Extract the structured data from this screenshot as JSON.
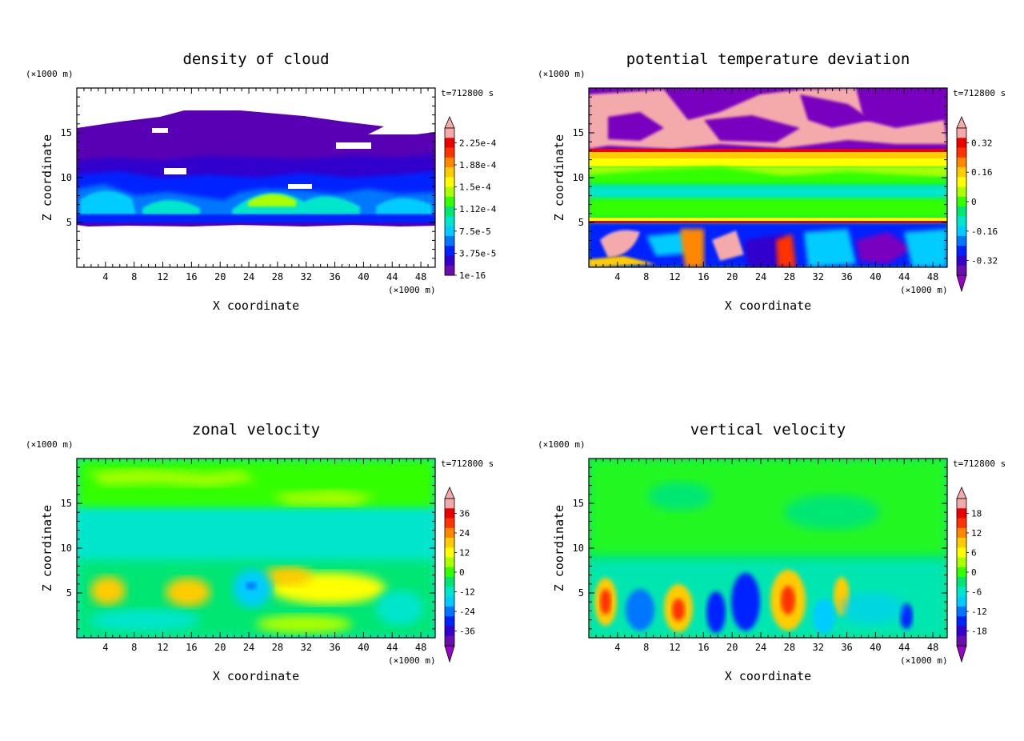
{
  "charts": [
    {
      "title": "density of cloud",
      "time_label": "t=712800 s",
      "colorbar_labels": [
        "2.25e-4",
        "1.88e-4",
        "1.5e-4",
        "1.12e-4",
        "7.5e-5",
        "3.75e-5",
        "1e-16"
      ]
    },
    {
      "title": "potential temperature deviation",
      "time_label": "t=712800 s",
      "colorbar_labels": [
        "0.32",
        "0.16",
        "0",
        "-0.16",
        "-0.32"
      ]
    },
    {
      "title": "zonal velocity",
      "time_label": "t=712800 s",
      "colorbar_labels": [
        "36",
        "24",
        "12",
        "0",
        "-12",
        "-24",
        "-36"
      ]
    },
    {
      "title": "vertical velocity",
      "time_label": "t=712800 s",
      "colorbar_labels": [
        "18",
        "12",
        "6",
        "0",
        "-6",
        "-12",
        "-18"
      ]
    }
  ],
  "axes": {
    "xlabel": "X coordinate",
    "ylabel": "Z coordinate",
    "xunit": "(×1000 m)",
    "yunit": "(×1000 m)",
    "xticks": [
      "4",
      "8",
      "12",
      "16",
      "20",
      "24",
      "28",
      "32",
      "36",
      "40",
      "44",
      "48"
    ],
    "yticks": [
      "5",
      "10",
      "15"
    ]
  },
  "chart_data": [
    {
      "type": "heatmap",
      "title": "density of cloud",
      "xlabel": "X coordinate",
      "ylabel": "Z coordinate",
      "xlim": [
        0,
        50
      ],
      "ylim": [
        0,
        20
      ],
      "xticks": [
        4,
        8,
        12,
        16,
        20,
        24,
        28,
        32,
        36,
        40,
        44,
        48
      ],
      "yticks": [
        5,
        10,
        15
      ],
      "colorbar": [
        0.000225,
        0.000188,
        0.00015,
        0.000112,
        7.5e-05,
        3.75e-05,
        1e-16
      ],
      "cloud_layer": {
        "z_bottom": 5,
        "z_top": 17
      }
    },
    {
      "type": "heatmap",
      "title": "potential temperature deviation",
      "xlabel": "X coordinate",
      "ylabel": "Z coordinate",
      "xlim": [
        0,
        50
      ],
      "ylim": [
        0,
        20
      ],
      "xticks": [
        4,
        8,
        12,
        16,
        20,
        24,
        28,
        32,
        36,
        40,
        44,
        48
      ],
      "yticks": [
        5,
        10,
        15
      ],
      "colorbar": [
        0.32,
        0.16,
        0,
        -0.16,
        -0.32
      ]
    },
    {
      "type": "heatmap",
      "title": "zonal velocity",
      "xlabel": "X coordinate",
      "ylabel": "Z coordinate",
      "xlim": [
        0,
        50
      ],
      "ylim": [
        0,
        20
      ],
      "xticks": [
        4,
        8,
        12,
        16,
        20,
        24,
        28,
        32,
        36,
        40,
        44,
        48
      ],
      "yticks": [
        5,
        10,
        15
      ],
      "colorbar": [
        36,
        24,
        12,
        0,
        -12,
        -24,
        -36
      ]
    },
    {
      "type": "heatmap",
      "title": "vertical velocity",
      "xlabel": "X coordinate",
      "ylabel": "Z coordinate",
      "xlim": [
        0,
        50
      ],
      "ylim": [
        0,
        20
      ],
      "xticks": [
        4,
        8,
        12,
        16,
        20,
        24,
        28,
        32,
        36,
        40,
        44,
        48
      ],
      "yticks": [
        5,
        10,
        15
      ],
      "colorbar": [
        18,
        12,
        6,
        0,
        -6,
        -12,
        -18
      ]
    }
  ],
  "colors": {
    "palette": [
      "#6a0dad",
      "#3300cc",
      "#0022ff",
      "#0077ff",
      "#00ccff",
      "#00e6cc",
      "#00e673",
      "#33ff00",
      "#aaff00",
      "#ffff00",
      "#ffcc00",
      "#ff8800",
      "#ff3300",
      "#ee0000",
      "#f4aaaa"
    ],
    "pink_over": "#f4aaaa",
    "purple_under": "#9a00c8"
  }
}
